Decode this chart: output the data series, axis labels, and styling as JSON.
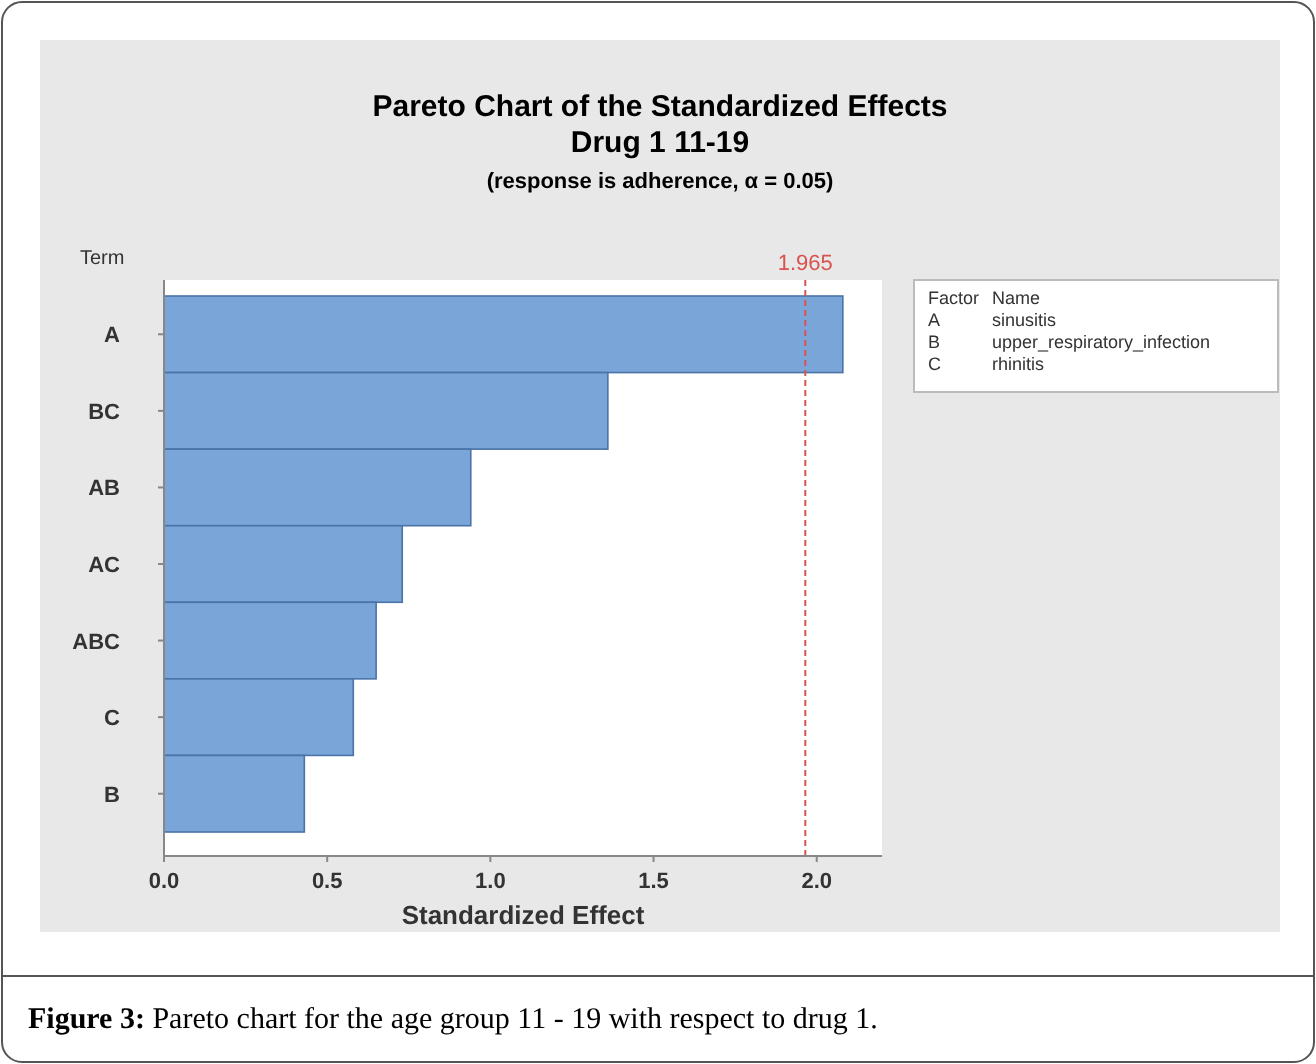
{
  "chart_data": {
    "type": "bar",
    "orientation": "horizontal",
    "title": "Pareto Chart of the Standardized Effects\nDrug 1 11-19",
    "subtitle": "(response is adherence, α = 0.05)",
    "xlabel": "Standardized Effect",
    "ylabel": "Term",
    "categories": [
      "A",
      "BC",
      "AB",
      "AC",
      "ABC",
      "C",
      "B"
    ],
    "values": [
      2.08,
      1.36,
      0.94,
      0.73,
      0.65,
      0.58,
      0.43
    ],
    "color": "#7aa5d8",
    "xlim": [
      0,
      2.2
    ],
    "xticks": [
      {
        "value": 0,
        "label": "0.0"
      },
      0.5,
      {
        "value": 1,
        "label": "1.0"
      },
      1.5,
      {
        "value": 2,
        "label": "2.0"
      }
    ],
    "ref_lines": [
      {
        "axis": "x",
        "value": 1.965,
        "label": "1.965",
        "color": "#d9534f",
        "line_style": "dashed"
      }
    ],
    "annotations": [
      "Factor",
      "Name",
      "A",
      "sinusitis",
      "B",
      "upper_respiratory_infection",
      "C",
      "rhinitis",
      "Figure 3: Pareto chart for the age group 11 - 19 with respect to drug 1."
    ]
  }
}
